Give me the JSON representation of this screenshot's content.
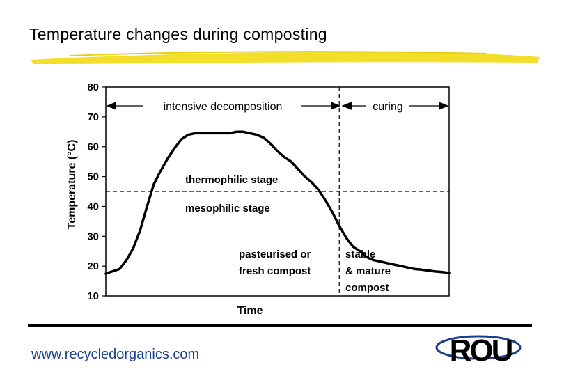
{
  "slide": {
    "title": "Temperature changes during composting",
    "website": "www.recycledorganics.com",
    "logo_text": "ROU",
    "title_underline_color": "#f2dc1e",
    "website_color": "#1b3f8f"
  },
  "chart_data": {
    "type": "line",
    "title": "",
    "xlabel": "Time",
    "ylabel": "Temperature (°C)",
    "ylim": [
      10,
      80
    ],
    "yticks": [
      10,
      20,
      30,
      40,
      50,
      60,
      70,
      80
    ],
    "xlim": [
      0,
      100
    ],
    "grid": false,
    "series": [
      {
        "x": [
          0,
          4,
          6,
          8,
          10,
          12,
          14,
          16,
          18,
          20,
          22,
          24,
          26,
          28,
          32,
          36,
          38,
          40,
          42,
          44,
          46,
          48,
          50,
          52,
          54,
          56,
          58,
          60,
          62,
          64,
          66,
          68,
          70,
          72,
          74,
          76,
          78,
          80,
          82,
          84,
          86,
          88,
          90,
          92,
          94,
          96,
          98,
          100
        ],
        "y": [
          17.5,
          19,
          22,
          26,
          32,
          40,
          47.5,
          52,
          56,
          59.5,
          62.5,
          64,
          64.5,
          64.5,
          64.5,
          64.5,
          65,
          65,
          64.5,
          64,
          63,
          61,
          58.5,
          56.5,
          55,
          52.5,
          50,
          48,
          45.5,
          42,
          38,
          33.5,
          29.5,
          26.5,
          25,
          23,
          22,
          21.5,
          21,
          20.5,
          20,
          19.5,
          19,
          18.8,
          18.5,
          18.2,
          18,
          17.7
        ]
      }
    ],
    "reference_lines": {
      "horizontal_y": 45,
      "vertical_x": 68
    },
    "annotations": {
      "intensive": "intensive decomposition",
      "curing": "curing",
      "thermophilic": "thermophilic stage",
      "mesophilic": "mesophilic stage",
      "pasteurised_line1": "pasteurised or",
      "pasteurised_line2": "fresh compost",
      "stable_line1": "stable",
      "stable_line2": "& mature",
      "stable_line3": "compost"
    }
  }
}
